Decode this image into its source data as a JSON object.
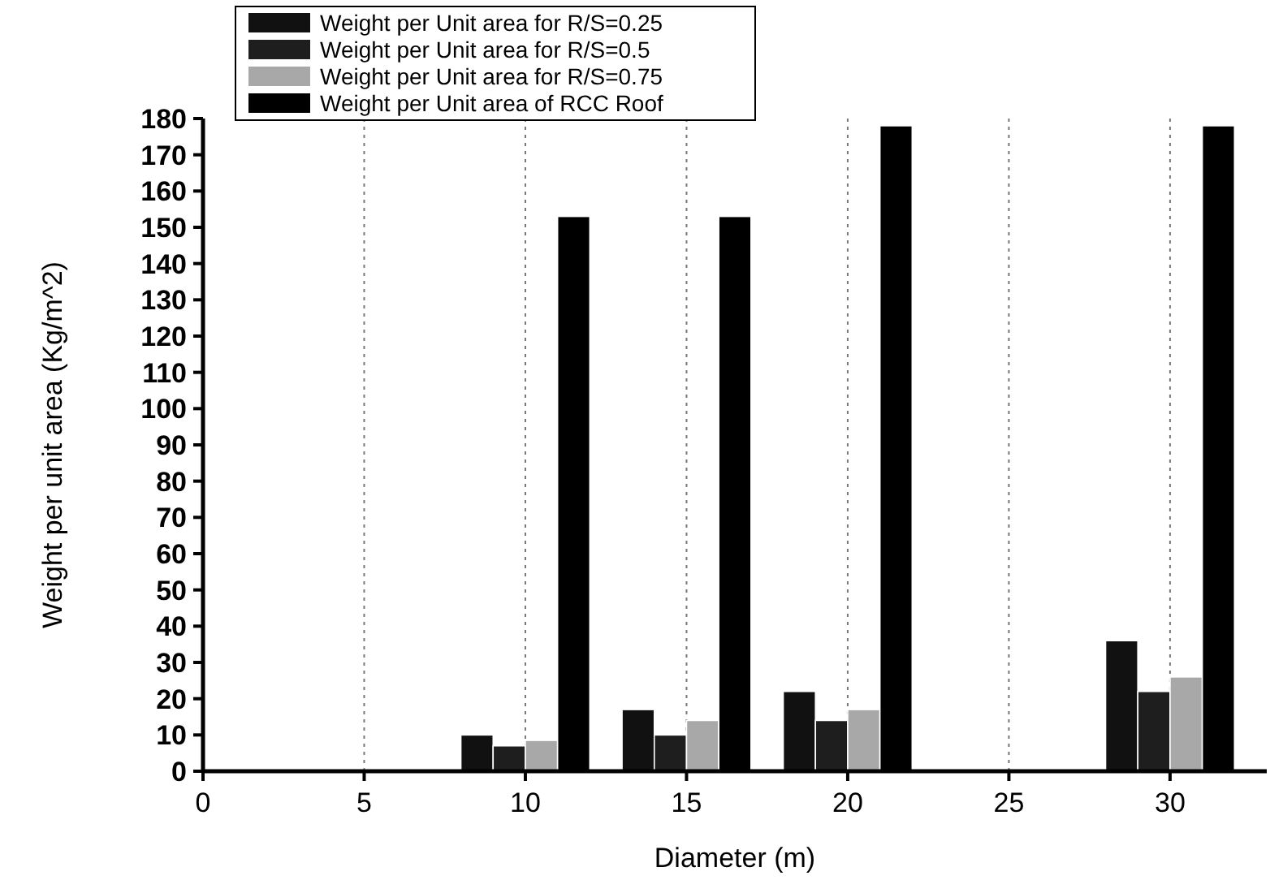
{
  "chart_data": {
    "type": "bar",
    "xlabel": "Diameter (m)",
    "ylabel": "Weight per unit area (Kg/m^2)",
    "x": [
      10,
      15,
      20,
      30
    ],
    "series": [
      {
        "name": "Weight per Unit area for R/S=0.25",
        "color": "#111111",
        "values": [
          10,
          17,
          22,
          36
        ]
      },
      {
        "name": "Weight per Unit area for R/S=0.5",
        "color": "#1e1e1e",
        "values": [
          7,
          10,
          14,
          22
        ]
      },
      {
        "name": "Weight per Unit area for R/S=0.75",
        "color": "#a8a8a8",
        "values": [
          8.5,
          14,
          17,
          26
        ]
      },
      {
        "name": "Weight per Unit area of RCC Roof",
        "color": "#000000",
        "values": [
          153,
          153,
          178,
          178
        ]
      }
    ],
    "xlim": [
      0,
      33
    ],
    "xticks": [
      0,
      5,
      10,
      15,
      20,
      25,
      30
    ],
    "ylim": [
      0,
      180
    ],
    "yticks": [
      0,
      10,
      20,
      30,
      40,
      50,
      60,
      70,
      80,
      90,
      100,
      110,
      120,
      130,
      140,
      150,
      160,
      170,
      180
    ],
    "grid": "x",
    "legend": "top left"
  }
}
